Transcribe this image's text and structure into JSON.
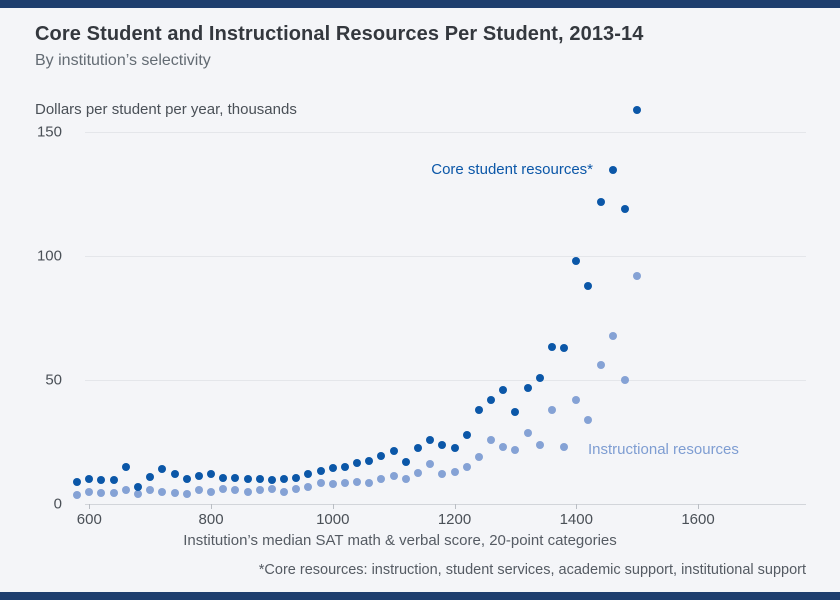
{
  "page": {
    "background_color": "#f4f5f8",
    "top_bar_color": "#1e3e6e",
    "bottom_bar_color": "#1e3e6e"
  },
  "header": {
    "title": "Core Student and Instructional Resources Per Student, 2013-14",
    "subtitle": "By institution’s selectivity"
  },
  "chart_data": {
    "type": "scatter",
    "title": "Core Student and Instructional Resources Per Student, 2013-14",
    "subtitle": "By institution’s selectivity",
    "y_axis": {
      "unit_label": "Dollars per student per year, thousands",
      "ticks": [
        0,
        50,
        100,
        150
      ],
      "range": [
        0,
        165
      ],
      "gridlines": true
    },
    "x_axis": {
      "title": "Institution’s median SAT math & verbal score, 20-point categories",
      "ticks": [
        600,
        800,
        1000,
        1200,
        1400,
        1600
      ],
      "range": [
        570,
        1780
      ]
    },
    "footnote": "*Core resources: instruction, student services, academic support, institutional support",
    "legend_position": "inline-annotations",
    "series": [
      {
        "name": "Core student resources*",
        "color": "#0b57a8",
        "points": [
          [
            580,
            9
          ],
          [
            600,
            10
          ],
          [
            620,
            9.5
          ],
          [
            640,
            9.5
          ],
          [
            660,
            15
          ],
          [
            680,
            7
          ],
          [
            700,
            11
          ],
          [
            720,
            14
          ],
          [
            740,
            12
          ],
          [
            760,
            10
          ],
          [
            780,
            11.5
          ],
          [
            800,
            12
          ],
          [
            820,
            10.5
          ],
          [
            840,
            10.5
          ],
          [
            860,
            10
          ],
          [
            880,
            10
          ],
          [
            900,
            9.5
          ],
          [
            920,
            10
          ],
          [
            940,
            10.5
          ],
          [
            960,
            12
          ],
          [
            980,
            13.5
          ],
          [
            1000,
            14.5
          ],
          [
            1020,
            15
          ],
          [
            1040,
            16.5
          ],
          [
            1060,
            17.5
          ],
          [
            1080,
            19.5
          ],
          [
            1100,
            21.5
          ],
          [
            1120,
            17
          ],
          [
            1140,
            22.5
          ],
          [
            1160,
            26
          ],
          [
            1180,
            24
          ],
          [
            1200,
            22.5
          ],
          [
            1220,
            28
          ],
          [
            1240,
            38
          ],
          [
            1260,
            42
          ],
          [
            1280,
            46
          ],
          [
            1300,
            37
          ],
          [
            1320,
            47
          ],
          [
            1340,
            51
          ],
          [
            1360,
            63.5
          ],
          [
            1380,
            63
          ],
          [
            1400,
            98
          ],
          [
            1420,
            88
          ],
          [
            1440,
            122
          ],
          [
            1460,
            135
          ],
          [
            1480,
            119
          ],
          [
            1500,
            159
          ]
        ]
      },
      {
        "name": "Instructional resources",
        "color": "#85a2d5",
        "points": [
          [
            580,
            3.5
          ],
          [
            600,
            5
          ],
          [
            620,
            4.5
          ],
          [
            640,
            4.5
          ],
          [
            660,
            5.5
          ],
          [
            680,
            4
          ],
          [
            700,
            5.5
          ],
          [
            720,
            5
          ],
          [
            740,
            4.5
          ],
          [
            760,
            4
          ],
          [
            780,
            5.5
          ],
          [
            800,
            5
          ],
          [
            820,
            6
          ],
          [
            840,
            5.5
          ],
          [
            860,
            5
          ],
          [
            880,
            5.5
          ],
          [
            900,
            6
          ],
          [
            920,
            5
          ],
          [
            940,
            6
          ],
          [
            960,
            7
          ],
          [
            980,
            8.5
          ],
          [
            1000,
            8
          ],
          [
            1020,
            8.5
          ],
          [
            1040,
            9
          ],
          [
            1060,
            8.5
          ],
          [
            1080,
            10
          ],
          [
            1100,
            11.5
          ],
          [
            1120,
            10
          ],
          [
            1140,
            12.5
          ],
          [
            1160,
            16
          ],
          [
            1180,
            12
          ],
          [
            1200,
            13
          ],
          [
            1220,
            15
          ],
          [
            1240,
            19
          ],
          [
            1260,
            26
          ],
          [
            1280,
            23
          ],
          [
            1300,
            22
          ],
          [
            1320,
            28.5
          ],
          [
            1340,
            24
          ],
          [
            1360,
            38
          ],
          [
            1380,
            23
          ],
          [
            1400,
            42
          ],
          [
            1420,
            34
          ],
          [
            1440,
            56
          ],
          [
            1460,
            68
          ],
          [
            1480,
            50
          ],
          [
            1500,
            92
          ]
        ]
      }
    ]
  }
}
